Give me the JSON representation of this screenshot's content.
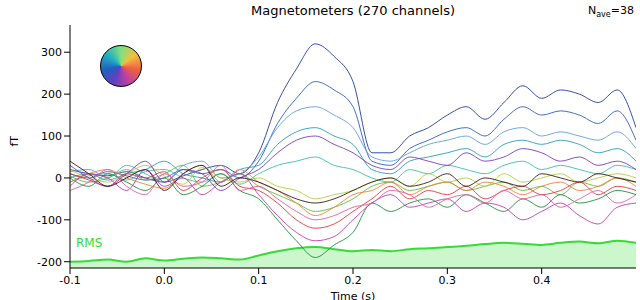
{
  "chart_data": {
    "type": "line",
    "title": "Magnetometers (270 channels)",
    "annotation": [
      "N",
      "ave",
      "=38"
    ],
    "x_label": "Time (s)",
    "y_label": "fT",
    "x": [
      -0.1,
      -0.08,
      -0.06,
      -0.04,
      -0.02,
      0,
      0.02,
      0.04,
      0.06,
      0.08,
      0.1,
      0.12,
      0.14,
      0.16,
      0.18,
      0.2,
      0.22,
      0.24,
      0.26,
      0.28,
      0.3,
      0.32,
      0.34,
      0.36,
      0.38,
      0.4,
      0.42,
      0.44,
      0.46,
      0.48,
      0.5
    ],
    "xlim": [
      -0.1,
      0.5
    ],
    "xticks": [
      -0.1,
      {
        "value": 0,
        "label": "0.0"
      },
      0.1,
      0.2,
      0.3,
      0.4
    ],
    "ylim": [
      -215,
      365
    ],
    "yticks": [
      -200,
      -100,
      0,
      100,
      200,
      300
    ],
    "grid": false,
    "series": [
      {
        "color": "#1f3d9e",
        "values": [
          20,
          10,
          5,
          15,
          0,
          -10,
          5,
          20,
          30,
          10,
          60,
          180,
          260,
          320,
          290,
          230,
          60,
          60,
          100,
          120,
          150,
          170,
          140,
          180,
          220,
          190,
          210,
          200,
          180,
          210,
          120
        ]
      },
      {
        "color": "#2f5fbf",
        "values": [
          10,
          0,
          15,
          5,
          -5,
          0,
          20,
          10,
          20,
          0,
          40,
          130,
          190,
          230,
          210,
          170,
          40,
          30,
          70,
          90,
          110,
          120,
          100,
          140,
          170,
          150,
          160,
          150,
          130,
          160,
          90
        ]
      },
      {
        "color": "#5fa0e0",
        "values": [
          15,
          20,
          0,
          30,
          10,
          -10,
          30,
          40,
          0,
          10,
          50,
          120,
          160,
          170,
          150,
          120,
          50,
          40,
          60,
          80,
          90,
          100,
          80,
          110,
          120,
          100,
          110,
          100,
          90,
          110,
          70
        ]
      },
      {
        "color": "#2a9dbf",
        "values": [
          0,
          10,
          -5,
          10,
          20,
          40,
          10,
          0,
          -10,
          20,
          30,
          80,
          110,
          120,
          100,
          80,
          20,
          10,
          40,
          50,
          60,
          70,
          50,
          80,
          90,
          80,
          90,
          80,
          60,
          70,
          40
        ]
      },
      {
        "color": "#3cbfa0",
        "values": [
          -10,
          5,
          10,
          -5,
          15,
          20,
          0,
          -10,
          10,
          -15,
          10,
          30,
          40,
          50,
          30,
          20,
          0,
          -10,
          20,
          10,
          30,
          20,
          10,
          30,
          40,
          20,
          30,
          20,
          10,
          30,
          20
        ]
      },
      {
        "color": "#5fbf3c",
        "values": [
          5,
          -10,
          0,
          20,
          -5,
          10,
          30,
          -20,
          -10,
          10,
          -20,
          -40,
          -60,
          -80,
          -70,
          -50,
          -20,
          -10,
          -30,
          -20,
          -10,
          -30,
          -20,
          -10,
          -30,
          -20,
          -40,
          -10,
          -20,
          0,
          -10
        ]
      },
      {
        "color": "#1f8f3c",
        "values": [
          0,
          -20,
          10,
          -10,
          -30,
          0,
          -40,
          -20,
          10,
          -30,
          -50,
          -100,
          -150,
          -190,
          -160,
          -130,
          -60,
          -80,
          -60,
          -50,
          -70,
          -40,
          -60,
          -80,
          -50,
          -70,
          -40,
          -60,
          -50,
          -30,
          -40
        ]
      },
      {
        "color": "#b5cf3c",
        "values": [
          20,
          0,
          -10,
          10,
          30,
          5,
          -15,
          25,
          0,
          -10,
          0,
          -20,
          -30,
          -50,
          -40,
          -30,
          -10,
          0,
          -20,
          10,
          -10,
          0,
          -20,
          10,
          -10,
          0,
          10,
          -10,
          0,
          10,
          0
        ]
      },
      {
        "color": "#f0803c",
        "values": [
          -10,
          10,
          20,
          0,
          -15,
          -25,
          10,
          30,
          -10,
          20,
          -10,
          -30,
          -60,
          -90,
          -70,
          -40,
          -30,
          -10,
          -40,
          -20,
          -10,
          -30,
          -10,
          -20,
          -40,
          -20,
          -10,
          -30,
          -20,
          0,
          -20
        ]
      },
      {
        "color": "#e03c3c",
        "values": [
          10,
          -5,
          -20,
          10,
          0,
          15,
          -30,
          0,
          20,
          -20,
          -30,
          -60,
          -100,
          -120,
          -110,
          -80,
          -50,
          -20,
          -50,
          -30,
          -40,
          -20,
          -50,
          -30,
          -20,
          -40,
          -30,
          -10,
          -40,
          -20,
          -30
        ]
      },
      {
        "color": "#c03cb0",
        "values": [
          -20,
          10,
          0,
          -30,
          20,
          -20,
          0,
          -40,
          -10,
          10,
          -40,
          -90,
          -130,
          -150,
          -140,
          -100,
          -60,
          -40,
          -70,
          -60,
          -50,
          -80,
          -60,
          -70,
          -100,
          -80,
          -60,
          -90,
          -110,
          -70,
          -60
        ]
      },
      {
        "color": "#e060a0",
        "values": [
          -30,
          -10,
          20,
          -20,
          -40,
          10,
          -20,
          -10,
          30,
          -30,
          -20,
          -50,
          -80,
          -100,
          -90,
          -70,
          -60,
          -30,
          -40,
          -70,
          -50,
          -40,
          -60,
          -30,
          -50,
          -40,
          -70,
          -50,
          -30,
          -60,
          -40
        ]
      },
      {
        "color": "#7a3cc0",
        "values": [
          30,
          0,
          -20,
          10,
          40,
          -10,
          20,
          10,
          -30,
          0,
          20,
          60,
          90,
          100,
          80,
          60,
          30,
          20,
          50,
          40,
          30,
          60,
          40,
          50,
          70,
          60,
          40,
          50,
          30,
          40,
          20
        ]
      },
      {
        "color": "#3a1a1a",
        "values": [
          40,
          10,
          -20,
          0,
          20,
          -30,
          10,
          30,
          -20,
          0,
          -10,
          -30,
          -50,
          -60,
          -50,
          -30,
          -10,
          0,
          -20,
          -10,
          10,
          -20,
          0,
          -10,
          -20,
          10,
          0,
          -10,
          10,
          0,
          -10
        ]
      },
      {
        "name": "RMS",
        "type": "area",
        "color": "#33dd33",
        "values": [
          -200,
          -198,
          -195,
          -200,
          -192,
          -197,
          -193,
          -190,
          -192,
          -195,
          -185,
          -175,
          -168,
          -165,
          -170,
          -175,
          -172,
          -175,
          -170,
          -168,
          -165,
          -162,
          -158,
          -155,
          -157,
          -160,
          -155,
          -152,
          -156,
          -150,
          -155
        ]
      }
    ]
  }
}
